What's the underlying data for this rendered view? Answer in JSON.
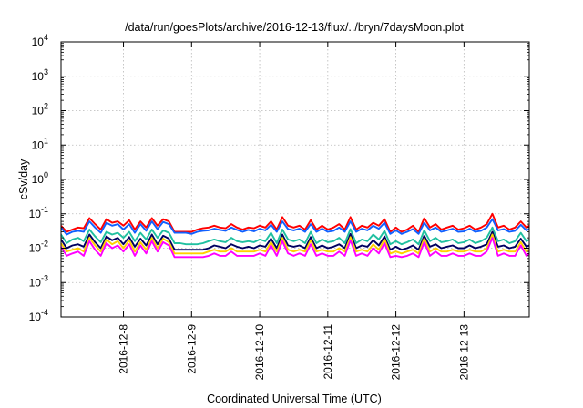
{
  "chart_data": {
    "type": "line",
    "title": "/data/run/goesPlots/archive/2016-12-13/flux/../bryn/7daysMoon.plot",
    "xlabel": "Coordinated Universal Time (UTC)",
    "ylabel": "cSv/day",
    "yscale": "log",
    "ylim": [
      0.0001,
      10000
    ],
    "xlim": [
      "2016-12-07T02:00",
      "2016-12-13T23:00"
    ],
    "grid": true,
    "x_ticks": [
      "2016-12-8",
      "2016-12-9",
      "2016-12-10",
      "2016-12-11",
      "2016-12-12",
      "2016-12-13"
    ],
    "y_ticks": [
      {
        "value": 0.0001,
        "base": "10",
        "exp": "-4"
      },
      {
        "value": 0.001,
        "base": "10",
        "exp": "-3"
      },
      {
        "value": 0.01,
        "base": "10",
        "exp": "-2"
      },
      {
        "value": 0.1,
        "base": "10",
        "exp": "-1"
      },
      {
        "value": 1,
        "base": "10",
        "exp": "0"
      },
      {
        "value": 10,
        "base": "10",
        "exp": "1"
      },
      {
        "value": 100,
        "base": "10",
        "exp": "2"
      },
      {
        "value": 1000,
        "base": "10",
        "exp": "3"
      },
      {
        "value": 10000,
        "base": "10",
        "exp": "4"
      }
    ],
    "x": [
      "2016-12-07T02:00",
      "2016-12-07T04:00",
      "2016-12-07T06:00",
      "2016-12-07T08:00",
      "2016-12-07T10:00",
      "2016-12-07T12:00",
      "2016-12-07T14:00",
      "2016-12-07T16:00",
      "2016-12-07T18:00",
      "2016-12-07T20:00",
      "2016-12-07T22:00",
      "2016-12-08T00:00",
      "2016-12-08T02:00",
      "2016-12-08T04:00",
      "2016-12-08T06:00",
      "2016-12-08T08:00",
      "2016-12-08T10:00",
      "2016-12-08T12:00",
      "2016-12-08T14:00",
      "2016-12-08T16:00",
      "2016-12-08T18:00",
      "2016-12-08T20:00",
      "2016-12-08T22:00",
      "2016-12-09T00:00",
      "2016-12-09T02:00",
      "2016-12-09T04:00",
      "2016-12-09T06:00",
      "2016-12-09T08:00",
      "2016-12-09T10:00",
      "2016-12-09T12:00",
      "2016-12-09T14:00",
      "2016-12-09T16:00",
      "2016-12-09T18:00",
      "2016-12-09T20:00",
      "2016-12-09T22:00",
      "2016-12-10T00:00",
      "2016-12-10T02:00",
      "2016-12-10T04:00",
      "2016-12-10T06:00",
      "2016-12-10T08:00",
      "2016-12-10T10:00",
      "2016-12-10T12:00",
      "2016-12-10T14:00",
      "2016-12-10T16:00",
      "2016-12-10T18:00",
      "2016-12-10T20:00",
      "2016-12-10T22:00",
      "2016-12-11T00:00",
      "2016-12-11T02:00",
      "2016-12-11T04:00",
      "2016-12-11T06:00",
      "2016-12-11T08:00",
      "2016-12-11T10:00",
      "2016-12-11T12:00",
      "2016-12-11T14:00",
      "2016-12-11T16:00",
      "2016-12-11T18:00",
      "2016-12-11T20:00",
      "2016-12-11T22:00",
      "2016-12-12T00:00",
      "2016-12-12T02:00",
      "2016-12-12T04:00",
      "2016-12-12T06:00",
      "2016-12-12T08:00",
      "2016-12-12T10:00",
      "2016-12-12T12:00",
      "2016-12-12T14:00",
      "2016-12-12T16:00",
      "2016-12-12T18:00",
      "2016-12-12T20:00",
      "2016-12-12T22:00",
      "2016-12-13T00:00",
      "2016-12-13T02:00",
      "2016-12-13T04:00",
      "2016-12-13T06:00",
      "2016-12-13T08:00",
      "2016-12-13T10:00",
      "2016-12-13T12:00",
      "2016-12-13T14:00",
      "2016-12-13T16:00",
      "2016-12-13T18:00",
      "2016-12-13T20:00",
      "2016-12-13T22:00",
      "2016-12-13T23:00"
    ],
    "series": [
      {
        "color": "#ff0000",
        "values": [
          0.045,
          0.03,
          0.035,
          0.04,
          0.038,
          0.075,
          0.05,
          0.035,
          0.07,
          0.055,
          0.06,
          0.045,
          0.065,
          0.035,
          0.06,
          0.04,
          0.075,
          0.045,
          0.07,
          0.06,
          0.03,
          0.03,
          0.03,
          0.03,
          0.035,
          0.038,
          0.04,
          0.045,
          0.04,
          0.038,
          0.05,
          0.04,
          0.035,
          0.04,
          0.038,
          0.045,
          0.04,
          0.06,
          0.035,
          0.08,
          0.045,
          0.04,
          0.045,
          0.035,
          0.065,
          0.035,
          0.045,
          0.035,
          0.04,
          0.05,
          0.035,
          0.08,
          0.035,
          0.045,
          0.04,
          0.055,
          0.045,
          0.07,
          0.03,
          0.04,
          0.03,
          0.035,
          0.045,
          0.03,
          0.075,
          0.04,
          0.05,
          0.035,
          0.04,
          0.045,
          0.035,
          0.038,
          0.045,
          0.035,
          0.04,
          0.05,
          0.1,
          0.04,
          0.045,
          0.035,
          0.04,
          0.06,
          0.04,
          0.045
        ]
      },
      {
        "color": "#1060ff",
        "values": [
          0.04,
          0.025,
          0.03,
          0.032,
          0.03,
          0.06,
          0.04,
          0.028,
          0.055,
          0.045,
          0.05,
          0.035,
          0.05,
          0.028,
          0.05,
          0.032,
          0.06,
          0.036,
          0.058,
          0.05,
          0.028,
          0.028,
          0.028,
          0.026,
          0.03,
          0.032,
          0.033,
          0.037,
          0.034,
          0.032,
          0.04,
          0.034,
          0.03,
          0.034,
          0.031,
          0.037,
          0.033,
          0.048,
          0.03,
          0.06,
          0.036,
          0.033,
          0.037,
          0.03,
          0.05,
          0.03,
          0.037,
          0.03,
          0.032,
          0.04,
          0.03,
          0.06,
          0.03,
          0.037,
          0.033,
          0.045,
          0.037,
          0.055,
          0.026,
          0.033,
          0.026,
          0.03,
          0.036,
          0.026,
          0.055,
          0.033,
          0.04,
          0.03,
          0.033,
          0.037,
          0.03,
          0.031,
          0.037,
          0.03,
          0.032,
          0.04,
          0.07,
          0.033,
          0.036,
          0.03,
          0.032,
          0.048,
          0.033,
          0.036
        ]
      },
      {
        "color": "#20c0a0",
        "values": [
          0.025,
          0.014,
          0.018,
          0.02,
          0.016,
          0.035,
          0.022,
          0.015,
          0.03,
          0.025,
          0.028,
          0.02,
          0.03,
          0.016,
          0.028,
          0.018,
          0.035,
          0.02,
          0.033,
          0.028,
          0.014,
          0.014,
          0.013,
          0.013,
          0.013,
          0.014,
          0.016,
          0.018,
          0.016,
          0.015,
          0.02,
          0.016,
          0.015,
          0.016,
          0.015,
          0.018,
          0.016,
          0.028,
          0.014,
          0.035,
          0.018,
          0.016,
          0.018,
          0.014,
          0.03,
          0.014,
          0.018,
          0.015,
          0.016,
          0.02,
          0.014,
          0.036,
          0.014,
          0.018,
          0.016,
          0.025,
          0.018,
          0.032,
          0.013,
          0.016,
          0.013,
          0.015,
          0.018,
          0.013,
          0.033,
          0.016,
          0.02,
          0.015,
          0.016,
          0.018,
          0.014,
          0.015,
          0.018,
          0.014,
          0.016,
          0.02,
          0.04,
          0.016,
          0.018,
          0.014,
          0.016,
          0.028,
          0.016,
          0.018
        ]
      },
      {
        "color": "#000060",
        "values": [
          0.018,
          0.01,
          0.012,
          0.013,
          0.011,
          0.025,
          0.015,
          0.01,
          0.022,
          0.017,
          0.02,
          0.013,
          0.021,
          0.011,
          0.019,
          0.012,
          0.025,
          0.013,
          0.023,
          0.019,
          0.009,
          0.009,
          0.009,
          0.009,
          0.009,
          0.009,
          0.01,
          0.012,
          0.011,
          0.01,
          0.013,
          0.011,
          0.01,
          0.011,
          0.01,
          0.012,
          0.011,
          0.019,
          0.01,
          0.025,
          0.012,
          0.011,
          0.012,
          0.01,
          0.021,
          0.01,
          0.012,
          0.01,
          0.011,
          0.013,
          0.01,
          0.026,
          0.01,
          0.012,
          0.011,
          0.017,
          0.012,
          0.022,
          0.009,
          0.011,
          0.009,
          0.01,
          0.012,
          0.009,
          0.023,
          0.011,
          0.013,
          0.01,
          0.011,
          0.012,
          0.01,
          0.01,
          0.012,
          0.01,
          0.011,
          0.013,
          0.03,
          0.011,
          0.012,
          0.01,
          0.011,
          0.019,
          0.011,
          0.012
        ]
      },
      {
        "color": "#ffd000",
        "values": [
          0.014,
          0.008,
          0.009,
          0.01,
          0.008,
          0.02,
          0.012,
          0.008,
          0.018,
          0.013,
          0.016,
          0.01,
          0.017,
          0.008,
          0.015,
          0.009,
          0.02,
          0.01,
          0.019,
          0.015,
          0.007,
          0.007,
          0.007,
          0.007,
          0.007,
          0.007,
          0.008,
          0.009,
          0.008,
          0.008,
          0.01,
          0.008,
          0.008,
          0.008,
          0.008,
          0.009,
          0.008,
          0.015,
          0.008,
          0.02,
          0.009,
          0.008,
          0.009,
          0.008,
          0.017,
          0.008,
          0.009,
          0.008,
          0.008,
          0.01,
          0.008,
          0.021,
          0.008,
          0.009,
          0.008,
          0.013,
          0.009,
          0.018,
          0.007,
          0.008,
          0.007,
          0.008,
          0.009,
          0.007,
          0.019,
          0.008,
          0.01,
          0.008,
          0.008,
          0.009,
          0.008,
          0.008,
          0.009,
          0.008,
          0.008,
          0.01,
          0.025,
          0.008,
          0.009,
          0.008,
          0.008,
          0.015,
          0.008,
          0.009
        ]
      },
      {
        "color": "#ff00ff",
        "values": [
          0.011,
          0.006,
          0.007,
          0.008,
          0.006,
          0.016,
          0.009,
          0.006,
          0.014,
          0.01,
          0.012,
          0.008,
          0.013,
          0.006,
          0.012,
          0.007,
          0.016,
          0.008,
          0.015,
          0.012,
          0.0055,
          0.0055,
          0.0055,
          0.0055,
          0.0055,
          0.0055,
          0.006,
          0.007,
          0.006,
          0.006,
          0.008,
          0.006,
          0.006,
          0.006,
          0.006,
          0.007,
          0.006,
          0.012,
          0.006,
          0.016,
          0.007,
          0.006,
          0.007,
          0.006,
          0.013,
          0.006,
          0.007,
          0.006,
          0.006,
          0.008,
          0.006,
          0.017,
          0.006,
          0.007,
          0.006,
          0.01,
          0.007,
          0.014,
          0.0055,
          0.006,
          0.0055,
          0.006,
          0.007,
          0.0055,
          0.015,
          0.006,
          0.008,
          0.006,
          0.006,
          0.007,
          0.006,
          0.006,
          0.007,
          0.006,
          0.006,
          0.008,
          0.02,
          0.006,
          0.007,
          0.006,
          0.006,
          0.012,
          0.006,
          0.007
        ]
      }
    ]
  }
}
